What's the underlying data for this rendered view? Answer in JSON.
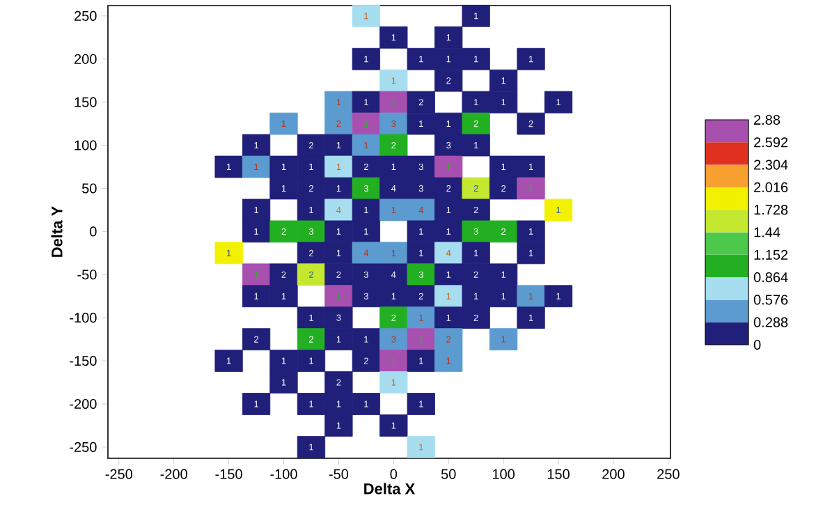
{
  "chart_data": {
    "type": "scatter",
    "xlabel": "Delta X",
    "ylabel": "Delta Y",
    "marker": "square",
    "xlim": [
      -260,
      252
    ],
    "ylim": [
      -263,
      262
    ],
    "xticks": [
      -250,
      -200,
      -150,
      -100,
      -50,
      0,
      50,
      100,
      150,
      200,
      250
    ],
    "yticks": [
      -250,
      -200,
      -150,
      -100,
      -50,
      0,
      50,
      100,
      150,
      200,
      250
    ],
    "clim": [
      0,
      2.88
    ],
    "cticks": [
      0,
      0.288,
      0.576,
      0.864,
      1.152,
      1.44,
      1.728,
      2.016,
      2.304,
      2.592,
      2.88
    ],
    "series": [
      {
        "x": [
          -25,
          75,
          0,
          50,
          -25,
          25,
          50,
          75,
          125,
          0,
          50,
          100,
          -50,
          -25,
          0,
          25,
          75,
          100,
          150,
          -100,
          -50,
          -25,
          0,
          25,
          50,
          75,
          125,
          -125,
          -75,
          -50,
          -25,
          0,
          50,
          75,
          -150,
          -125,
          -100,
          -75,
          -50,
          -25,
          0,
          25,
          50,
          100,
          125,
          -100,
          -75,
          -50,
          -25,
          0,
          25,
          50,
          75,
          100,
          125,
          -125,
          -75,
          -50,
          -25,
          0,
          25,
          50,
          75,
          150,
          -125,
          -100,
          -75,
          -50,
          -25,
          25,
          50,
          75,
          100,
          125,
          -150,
          -75,
          -50,
          -25,
          0,
          25,
          50,
          75,
          125,
          -125,
          -100,
          -75,
          -50,
          -25,
          0,
          25,
          50,
          75,
          100,
          -125,
          -100,
          -50,
          -25,
          0,
          25,
          50,
          75,
          100,
          125,
          150,
          -75,
          -50,
          0,
          25,
          50,
          75,
          125,
          -125,
          -75,
          -50,
          -25,
          0,
          25,
          50,
          100,
          -150,
          -100,
          -75,
          -25,
          0,
          25,
          50,
          -100,
          -50,
          0,
          -125,
          -75,
          -50,
          -25,
          25,
          -50,
          0,
          -75,
          25
        ],
        "values": [
          250,
          250,
          225,
          225,
          200,
          200,
          200,
          200,
          200,
          175,
          175,
          175,
          150,
          150,
          150,
          150,
          150,
          150,
          150,
          125,
          125,
          125,
          125,
          125,
          125,
          125,
          125,
          100,
          100,
          100,
          100,
          100,
          100,
          100,
          75,
          75,
          75,
          75,
          75,
          75,
          75,
          75,
          75,
          75,
          75,
          50,
          50,
          50,
          50,
          50,
          50,
          50,
          50,
          50,
          50,
          25,
          25,
          25,
          25,
          25,
          25,
          25,
          25,
          25,
          0,
          0,
          0,
          0,
          0,
          0,
          0,
          0,
          0,
          0,
          -25,
          -25,
          -25,
          -25,
          -25,
          -25,
          -25,
          -25,
          -25,
          -50,
          -50,
          -50,
          -50,
          -50,
          -50,
          -50,
          -50,
          -50,
          -50,
          -75,
          -75,
          -75,
          -75,
          -75,
          -75,
          -75,
          -75,
          -75,
          -75,
          -75,
          -100,
          -100,
          -100,
          -100,
          -100,
          -100,
          -100,
          -125,
          -125,
          -125,
          -125,
          -125,
          -125,
          -125,
          -125,
          -150,
          -150,
          -150,
          -150,
          -150,
          -150,
          -150,
          -175,
          -175,
          -175,
          -200,
          -200,
          -200,
          -200,
          -200,
          -225,
          -225,
          -250,
          -250
        ],
        "cvalues": [
          0.7,
          0.1,
          0.1,
          0.1,
          0.1,
          0.1,
          0.1,
          0.1,
          0.1,
          0.7,
          0.1,
          0.1,
          0.4,
          0.1,
          2.75,
          0.1,
          0.1,
          0.1,
          0.1,
          0.4,
          0.4,
          2.75,
          0.4,
          0.1,
          0.1,
          1,
          0.1,
          0.1,
          0.1,
          0.1,
          0.4,
          1,
          0.1,
          0.1,
          0.1,
          0.4,
          0.1,
          0.1,
          0.7,
          0.1,
          0.1,
          0.1,
          2.75,
          0.1,
          0.1,
          0.1,
          0.1,
          0.1,
          1,
          0.1,
          0.1,
          0.1,
          1.6,
          0.1,
          2.75,
          0.1,
          0.1,
          0.7,
          0.1,
          0.4,
          0.4,
          0.1,
          0.1,
          1.85,
          0.1,
          1,
          1,
          0.1,
          0.1,
          0.1,
          0.1,
          1,
          1,
          0.1,
          1.85,
          0.1,
          0.1,
          0.4,
          0.4,
          0.1,
          0.7,
          0.1,
          0.1,
          2.75,
          0.1,
          1.6,
          0.1,
          0.1,
          0.1,
          1,
          0.1,
          0.1,
          0.1,
          0.1,
          0.1,
          2.75,
          0.1,
          0.1,
          0.1,
          0.7,
          0.1,
          0.1,
          0.4,
          0.1,
          0.1,
          0.1,
          1,
          0.4,
          0.1,
          0.1,
          0.1,
          0.1,
          1,
          0.1,
          0.1,
          0.4,
          2.75,
          0.4,
          0.4,
          0.1,
          0.1,
          0.1,
          0.1,
          2.75,
          0.1,
          0.4,
          0.1,
          0.1,
          0.7,
          0.1,
          0.1,
          0.1,
          0.1,
          0.1,
          0.1,
          0.1,
          0.1,
          0.7
        ]
      }
    ],
    "annotations": [
      {
        "text": "1",
        "x": -25,
        "y": 250
      },
      {
        "text": "1",
        "x": 75,
        "y": 250
      },
      {
        "text": "1",
        "x": 0,
        "y": 225
      },
      {
        "text": "1",
        "x": 50,
        "y": 225
      },
      {
        "text": "1",
        "x": -25,
        "y": 200
      },
      {
        "text": "1",
        "x": 25,
        "y": 200
      },
      {
        "text": "1",
        "x": 50,
        "y": 200
      },
      {
        "text": "1",
        "x": 75,
        "y": 200
      },
      {
        "text": "1",
        "x": 125,
        "y": 200
      },
      {
        "text": "1",
        "x": 0,
        "y": 175
      },
      {
        "text": "2",
        "x": 50,
        "y": 175
      },
      {
        "text": "1",
        "x": 100,
        "y": 175
      },
      {
        "text": "1",
        "x": -50,
        "y": 150
      },
      {
        "text": "1",
        "x": -25,
        "y": 150
      },
      {
        "text": "1",
        "x": 0,
        "y": 150
      },
      {
        "text": "2",
        "x": 25,
        "y": 150
      },
      {
        "text": "1",
        "x": 75,
        "y": 150
      },
      {
        "text": "1",
        "x": 100,
        "y": 150
      },
      {
        "text": "1",
        "x": 150,
        "y": 150
      },
      {
        "text": "1",
        "x": -100,
        "y": 125
      },
      {
        "text": "2",
        "x": -50,
        "y": 125
      },
      {
        "text": "1",
        "x": -25,
        "y": 125
      },
      {
        "text": "3",
        "x": 0,
        "y": 125
      },
      {
        "text": "1",
        "x": 25,
        "y": 125
      },
      {
        "text": "1",
        "x": 50,
        "y": 125
      },
      {
        "text": "2",
        "x": 75,
        "y": 125
      },
      {
        "text": "2",
        "x": 125,
        "y": 125
      },
      {
        "text": "1",
        "x": -125,
        "y": 100
      },
      {
        "text": "2",
        "x": -75,
        "y": 100
      },
      {
        "text": "1",
        "x": -50,
        "y": 100
      },
      {
        "text": "1",
        "x": -25,
        "y": 100
      },
      {
        "text": "2",
        "x": 0,
        "y": 100
      },
      {
        "text": "3",
        "x": 50,
        "y": 100
      },
      {
        "text": "1",
        "x": 75,
        "y": 100
      },
      {
        "text": "1",
        "x": -150,
        "y": 75
      },
      {
        "text": "1",
        "x": -125,
        "y": 75
      },
      {
        "text": "1",
        "x": -100,
        "y": 75
      },
      {
        "text": "1",
        "x": -75,
        "y": 75
      },
      {
        "text": "1",
        "x": -50,
        "y": 75
      },
      {
        "text": "2",
        "x": -25,
        "y": 75
      },
      {
        "text": "1",
        "x": 0,
        "y": 75
      },
      {
        "text": "3",
        "x": 25,
        "y": 75
      },
      {
        "text": "1",
        "x": 50,
        "y": 75
      },
      {
        "text": "1",
        "x": 100,
        "y": 75
      },
      {
        "text": "1",
        "x": 125,
        "y": 75
      },
      {
        "text": "1",
        "x": -100,
        "y": 50
      },
      {
        "text": "2",
        "x": -75,
        "y": 50
      },
      {
        "text": "1",
        "x": -50,
        "y": 50
      },
      {
        "text": "3",
        "x": -25,
        "y": 50
      },
      {
        "text": "4",
        "x": 0,
        "y": 50
      },
      {
        "text": "3",
        "x": 25,
        "y": 50
      },
      {
        "text": "2",
        "x": 50,
        "y": 50
      },
      {
        "text": "2",
        "x": 75,
        "y": 50
      },
      {
        "text": "2",
        "x": 100,
        "y": 50
      },
      {
        "text": "1",
        "x": 125,
        "y": 50
      },
      {
        "text": "1",
        "x": -125,
        "y": 25
      },
      {
        "text": "1",
        "x": -75,
        "y": 25
      },
      {
        "text": "4",
        "x": -50,
        "y": 25
      },
      {
        "text": "1",
        "x": -25,
        "y": 25
      },
      {
        "text": "1",
        "x": 0,
        "y": 25
      },
      {
        "text": "4",
        "x": 25,
        "y": 25
      },
      {
        "text": "1",
        "x": 50,
        "y": 25
      },
      {
        "text": "2",
        "x": 75,
        "y": 25
      },
      {
        "text": "1",
        "x": 150,
        "y": 25
      },
      {
        "text": "1",
        "x": -125,
        "y": 0
      },
      {
        "text": "2",
        "x": -100,
        "y": 0
      },
      {
        "text": "3",
        "x": -75,
        "y": 0
      },
      {
        "text": "1",
        "x": -50,
        "y": 0
      },
      {
        "text": "1",
        "x": -25,
        "y": 0
      },
      {
        "text": "1",
        "x": 25,
        "y": 0
      },
      {
        "text": "1",
        "x": 50,
        "y": 0
      },
      {
        "text": "3",
        "x": 75,
        "y": 0
      },
      {
        "text": "2",
        "x": 100,
        "y": 0
      },
      {
        "text": "1",
        "x": 125,
        "y": 0
      },
      {
        "text": "1",
        "x": -150,
        "y": -25
      },
      {
        "text": "2",
        "x": -75,
        "y": -25
      },
      {
        "text": "1",
        "x": -50,
        "y": -25
      },
      {
        "text": "4",
        "x": -25,
        "y": -25
      },
      {
        "text": "1",
        "x": 0,
        "y": -25
      },
      {
        "text": "1",
        "x": 25,
        "y": -25
      },
      {
        "text": "4",
        "x": 50,
        "y": -25
      },
      {
        "text": "1",
        "x": 75,
        "y": -25
      },
      {
        "text": "1",
        "x": 125,
        "y": -25
      },
      {
        "text": "1",
        "x": -125,
        "y": -50
      },
      {
        "text": "2",
        "x": -100,
        "y": -50
      },
      {
        "text": "2",
        "x": -75,
        "y": -50
      },
      {
        "text": "2",
        "x": -50,
        "y": -50
      },
      {
        "text": "3",
        "x": -25,
        "y": -50
      },
      {
        "text": "4",
        "x": 0,
        "y": -50
      },
      {
        "text": "3",
        "x": 25,
        "y": -50
      },
      {
        "text": "1",
        "x": 50,
        "y": -50
      },
      {
        "text": "2",
        "x": 75,
        "y": -50
      },
      {
        "text": "1",
        "x": 100,
        "y": -50
      },
      {
        "text": "1",
        "x": -125,
        "y": -75
      },
      {
        "text": "1",
        "x": -100,
        "y": -75
      },
      {
        "text": "1",
        "x": -50,
        "y": -75
      },
      {
        "text": "3",
        "x": -25,
        "y": -75
      },
      {
        "text": "1",
        "x": 0,
        "y": -75
      },
      {
        "text": "2",
        "x": 25,
        "y": -75
      },
      {
        "text": "1",
        "x": 50,
        "y": -75
      },
      {
        "text": "1",
        "x": 75,
        "y": -75
      },
      {
        "text": "1",
        "x": 100,
        "y": -75
      },
      {
        "text": "1",
        "x": 125,
        "y": -75
      },
      {
        "text": "1",
        "x": 150,
        "y": -75
      },
      {
        "text": "1",
        "x": -75,
        "y": -100
      },
      {
        "text": "3",
        "x": -50,
        "y": -100
      },
      {
        "text": "2",
        "x": 0,
        "y": -100
      },
      {
        "text": "1",
        "x": 25,
        "y": -100
      },
      {
        "text": "1",
        "x": 50,
        "y": -100
      },
      {
        "text": "2",
        "x": 75,
        "y": -100
      },
      {
        "text": "1",
        "x": 125,
        "y": -100
      },
      {
        "text": "2",
        "x": -125,
        "y": -125
      },
      {
        "text": "2",
        "x": -75,
        "y": -125
      },
      {
        "text": "1",
        "x": -50,
        "y": -125
      },
      {
        "text": "1",
        "x": -25,
        "y": -125
      },
      {
        "text": "3",
        "x": 0,
        "y": -125
      },
      {
        "text": "1",
        "x": 25,
        "y": -125
      },
      {
        "text": "2",
        "x": 50,
        "y": -125
      },
      {
        "text": "1",
        "x": 100,
        "y": -125
      },
      {
        "text": "1",
        "x": -150,
        "y": -150
      },
      {
        "text": "1",
        "x": -100,
        "y": -150
      },
      {
        "text": "1",
        "x": -75,
        "y": -150
      },
      {
        "text": "2",
        "x": -25,
        "y": -150
      },
      {
        "text": "1",
        "x": 0,
        "y": -150
      },
      {
        "text": "1",
        "x": 25,
        "y": -150
      },
      {
        "text": "1",
        "x": 50,
        "y": -150
      },
      {
        "text": "1",
        "x": -100,
        "y": -175
      },
      {
        "text": "2",
        "x": -50,
        "y": -175
      },
      {
        "text": "1",
        "x": 0,
        "y": -175
      },
      {
        "text": "1",
        "x": -125,
        "y": -200
      },
      {
        "text": "1",
        "x": -75,
        "y": -200
      },
      {
        "text": "1",
        "x": -50,
        "y": -200
      },
      {
        "text": "1",
        "x": -25,
        "y": -200
      },
      {
        "text": "1",
        "x": 25,
        "y": -200
      },
      {
        "text": "1",
        "x": -50,
        "y": -225
      },
      {
        "text": "1",
        "x": 0,
        "y": -225
      },
      {
        "text": "1",
        "x": -75,
        "y": -250
      },
      {
        "text": "1",
        "x": 25,
        "y": -250
      }
    ]
  }
}
